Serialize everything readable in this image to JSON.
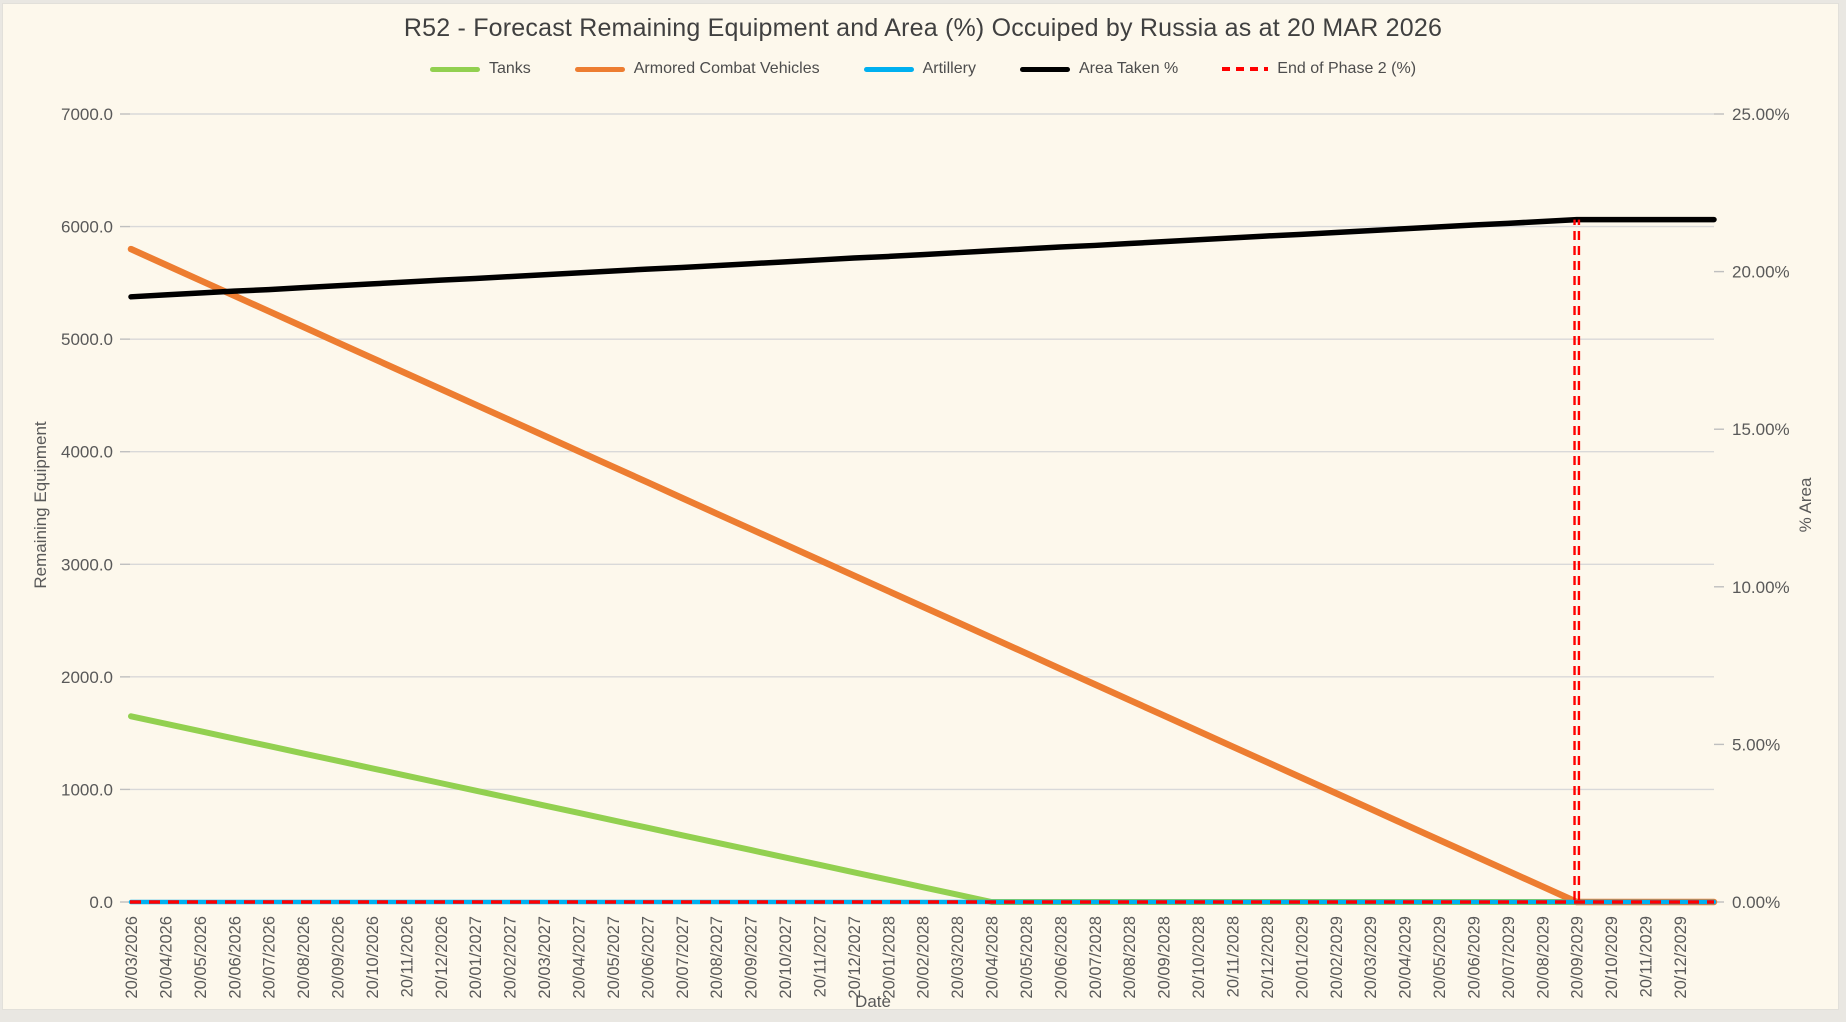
{
  "window": {
    "background_color": "#FDF8EC",
    "frame_color": "#E9E7E2"
  },
  "chart_data": {
    "type": "line",
    "title": "R52 - Forecast Remaining Equipment and Area (%) Occuiped by Russia as at 20 MAR 2026",
    "xlabel": "Date",
    "ylabel_left": "Remaining Equipment",
    "ylabel_right": "% Area",
    "grid": true,
    "legend_position": "top",
    "colors": {
      "tanks": "#92D050",
      "acv": "#ED7D31",
      "artillery": "#00B0F0",
      "area_taken": "#000000",
      "end_of_phase": "#FF0000",
      "gridline": "#D9D9D9",
      "tick": "#BFBFBF"
    },
    "y_left": {
      "min": 0,
      "max": 7000,
      "step": 1000,
      "ticks": [
        "0.0",
        "1000.0",
        "2000.0",
        "3000.0",
        "4000.0",
        "5000.0",
        "6000.0",
        "7000.0"
      ]
    },
    "y_right": {
      "min": 0,
      "max": 25,
      "step": 5,
      "ticks": [
        "0.00%",
        "5.00%",
        "10.00%",
        "15.00%",
        "20.00%",
        "25.00%"
      ]
    },
    "categories": [
      "20/03/2026",
      "20/04/2026",
      "20/05/2026",
      "20/06/2026",
      "20/07/2026",
      "20/08/2026",
      "20/09/2026",
      "20/10/2026",
      "20/11/2026",
      "20/12/2026",
      "20/01/2027",
      "20/02/2027",
      "20/03/2027",
      "20/04/2027",
      "20/05/2027",
      "20/06/2027",
      "20/07/2027",
      "20/08/2027",
      "20/09/2027",
      "20/10/2027",
      "20/11/2027",
      "20/12/2027",
      "20/01/2028",
      "20/02/2028",
      "20/03/2028",
      "20/04/2028",
      "20/05/2028",
      "20/06/2028",
      "20/07/2028",
      "20/08/2028",
      "20/09/2028",
      "20/10/2028",
      "20/11/2028",
      "20/12/2028",
      "20/01/2029",
      "20/02/2029",
      "20/03/2029",
      "20/04/2029",
      "20/05/2029",
      "20/06/2029",
      "20/07/2029",
      "20/08/2029",
      "20/09/2029",
      "20/10/2029",
      "20/11/2029",
      "20/12/2029"
    ],
    "series": [
      {
        "name": "Tanks",
        "color": "#92D050",
        "axis": "left",
        "values": [
          1650,
          1584,
          1518,
          1452,
          1386,
          1320,
          1254,
          1188,
          1122,
          1056,
          990,
          924,
          858,
          792,
          726,
          660,
          594,
          528,
          462,
          396,
          330,
          264,
          198,
          132,
          66,
          0,
          0,
          0,
          0,
          0,
          0,
          0,
          0,
          0,
          0,
          0,
          0,
          0,
          0,
          0,
          0,
          0,
          0,
          0,
          0,
          0
        ]
      },
      {
        "name": "Armored Combat Vehicles",
        "color": "#ED7D31",
        "axis": "left",
        "values": [
          5800,
          5662,
          5524,
          5386,
          5248,
          5110,
          4971,
          4833,
          4695,
          4557,
          4419,
          4281,
          4143,
          4005,
          3867,
          3729,
          3590,
          3452,
          3314,
          3176,
          3038,
          2900,
          2762,
          2624,
          2486,
          2348,
          2210,
          2071,
          1933,
          1795,
          1657,
          1519,
          1381,
          1243,
          1105,
          967,
          829,
          690,
          552,
          414,
          276,
          138,
          0,
          0,
          0,
          0
        ]
      },
      {
        "name": "Artillery",
        "color": "#00B0F0",
        "axis": "left",
        "values": [
          0,
          0,
          0,
          0,
          0,
          0,
          0,
          0,
          0,
          0,
          0,
          0,
          0,
          0,
          0,
          0,
          0,
          0,
          0,
          0,
          0,
          0,
          0,
          0,
          0,
          0,
          0,
          0,
          0,
          0,
          0,
          0,
          0,
          0,
          0,
          0,
          0,
          0,
          0,
          0,
          0,
          0,
          0,
          0,
          0,
          0
        ]
      },
      {
        "name": "Area Taken %",
        "color": "#000000",
        "axis": "right",
        "values": [
          19.2,
          19.26,
          19.32,
          19.38,
          19.43,
          19.49,
          19.55,
          19.61,
          19.67,
          19.73,
          19.78,
          19.84,
          19.9,
          19.96,
          20.02,
          20.08,
          20.13,
          20.19,
          20.25,
          20.31,
          20.37,
          20.43,
          20.48,
          20.54,
          20.6,
          20.66,
          20.72,
          20.78,
          20.83,
          20.89,
          20.95,
          21.01,
          21.07,
          21.13,
          21.18,
          21.24,
          21.3,
          21.36,
          21.42,
          21.48,
          21.53,
          21.59,
          21.65,
          21.65,
          21.65,
          21.65
        ]
      }
    ],
    "end_of_phase": {
      "name": "End of Phase 2 (%)",
      "color": "#FF0000",
      "style": "dashed",
      "axis": "right",
      "baseline_value": 0,
      "spike_category": "20/09/2029",
      "spike_index": 42,
      "spike_value": 21.65
    },
    "legend": [
      {
        "label": "Tanks",
        "color": "#92D050",
        "style": "solid"
      },
      {
        "label": "Armored Combat Vehicles",
        "color": "#ED7D31",
        "style": "solid"
      },
      {
        "label": "Artillery",
        "color": "#00B0F0",
        "style": "solid"
      },
      {
        "label": "Area Taken %",
        "color": "#000000",
        "style": "solid"
      },
      {
        "label": "End of Phase 2 (%)",
        "color": "#FF0000",
        "style": "dashed"
      }
    ]
  }
}
